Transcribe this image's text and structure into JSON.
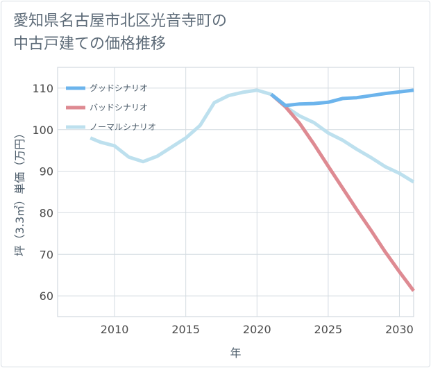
{
  "title_lines": [
    "愛知県名古屋市北区光音寺町の",
    "中古戸建ての価格推移"
  ],
  "chart_data": {
    "type": "line",
    "xlabel": "年",
    "ylabel": "坪（3.3㎡）単価（万円）",
    "xlim": [
      2006,
      2031
    ],
    "ylim": [
      55,
      115
    ],
    "xticks": [
      2010,
      2015,
      2020,
      2025,
      2030
    ],
    "yticks": [
      60,
      70,
      80,
      90,
      100,
      110
    ],
    "grid": true,
    "legend_position": "top-left",
    "series": [
      {
        "name": "グッドシナリオ",
        "color": "#6cb4ec",
        "x": [
          2021,
          2022,
          2023,
          2024,
          2025,
          2026,
          2027,
          2028,
          2029,
          2030,
          2031
        ],
        "y": [
          108.5,
          105.8,
          106.2,
          106.3,
          106.6,
          107.5,
          107.7,
          108.2,
          108.7,
          109.1,
          109.5
        ]
      },
      {
        "name": "バッドシナリオ",
        "color": "#de8a92",
        "x": [
          2021,
          2022,
          2023,
          2024,
          2025,
          2026,
          2027,
          2028,
          2029,
          2030,
          2031
        ],
        "y": [
          108.5,
          105.5,
          101.5,
          96.5,
          91.2,
          86.0,
          80.8,
          75.8,
          70.6,
          65.8,
          61.2
        ]
      },
      {
        "name": "ノーマルシナリオ",
        "color": "#bde0ee",
        "x": [
          2008.3,
          2009,
          2010,
          2011,
          2012,
          2013,
          2014,
          2015,
          2016,
          2017,
          2018,
          2019,
          2020,
          2021,
          2022,
          2023,
          2024,
          2025,
          2026,
          2027,
          2028,
          2029,
          2030,
          2031
        ],
        "y": [
          98.0,
          97.0,
          96.1,
          93.4,
          92.3,
          93.6,
          95.8,
          98.0,
          101.0,
          106.5,
          108.2,
          109.0,
          109.5,
          108.5,
          105.5,
          103.3,
          101.7,
          99.2,
          97.5,
          95.3,
          93.3,
          91.1,
          89.5,
          87.4
        ]
      }
    ]
  }
}
